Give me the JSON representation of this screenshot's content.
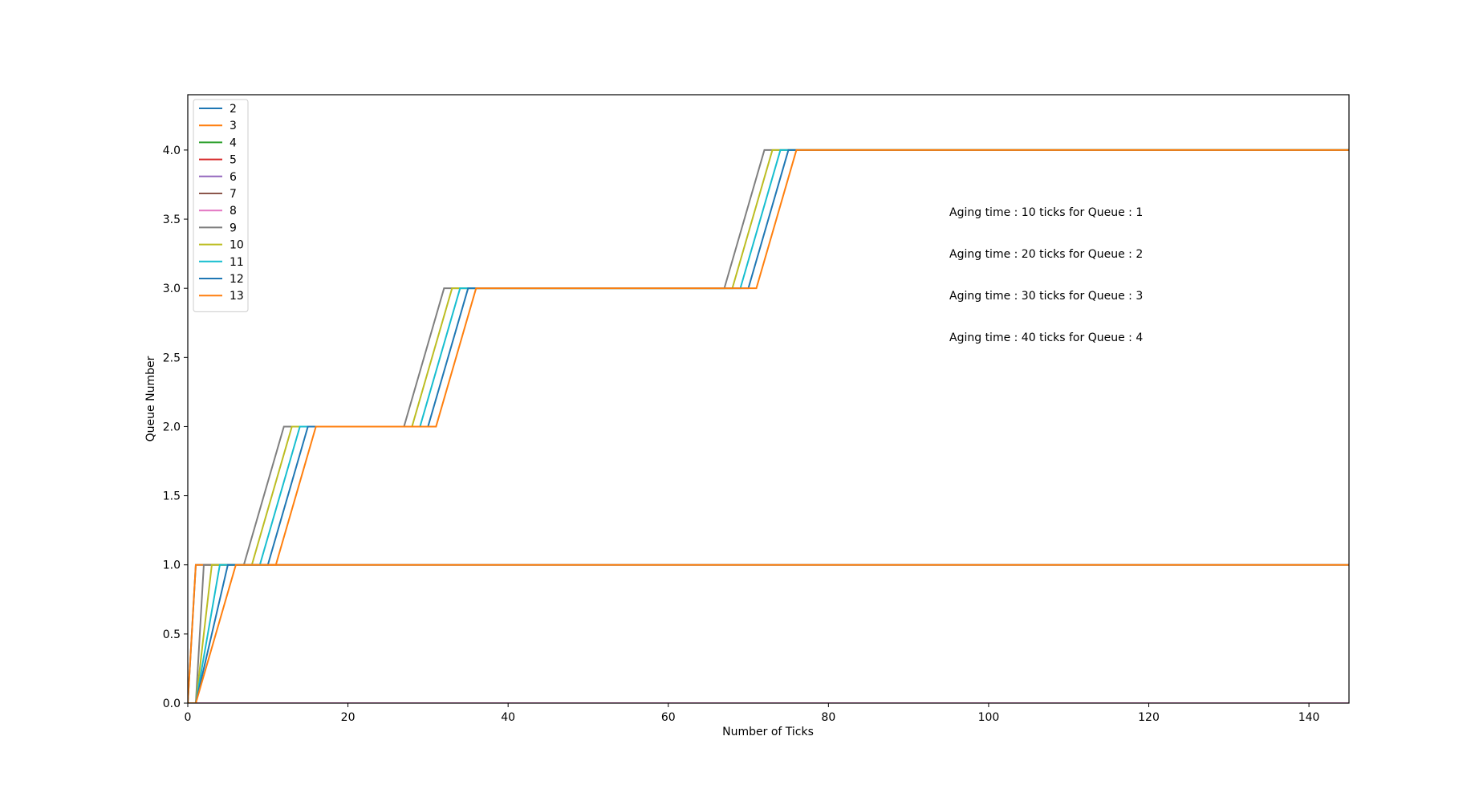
{
  "chart_data": {
    "type": "line",
    "title": "",
    "xlabel": "Number of Ticks",
    "ylabel": "Queue Number",
    "xlim": [
      0,
      145
    ],
    "ylim": [
      0,
      4.4
    ],
    "xticks": [
      0,
      20,
      40,
      60,
      80,
      100,
      120,
      140
    ],
    "xtick_labels": [
      "0",
      "20",
      "40",
      "60",
      "80",
      "100",
      "120",
      "140"
    ],
    "yticks": [
      0,
      0.5,
      1,
      1.5,
      2,
      2.5,
      3,
      3.5,
      4
    ],
    "ytick_labels": [
      "0.0",
      "0.5",
      "1.0",
      "1.5",
      "2.0",
      "2.5",
      "3.0",
      "3.5",
      "4.0"
    ],
    "grid": false,
    "legend_position": "upper-left",
    "annotations": [
      "Aging time : 10 ticks for Queue : 1",
      "Aging time : 20 ticks for Queue : 2",
      "Aging time : 30 ticks for Queue : 3",
      "Aging time : 40 ticks for Queue : 4"
    ],
    "series": [
      {
        "name": "2",
        "color": "#1f77b4",
        "x": [
          0,
          1,
          145
        ],
        "y": [
          0,
          1,
          1
        ]
      },
      {
        "name": "3",
        "color": "#ff7f0e",
        "x": [
          0,
          1,
          145
        ],
        "y": [
          0,
          1,
          1
        ]
      },
      {
        "name": "4",
        "color": "#2ca02c",
        "x": [
          0,
          145
        ],
        "y": [
          0,
          0
        ]
      },
      {
        "name": "5",
        "color": "#d62728",
        "x": [
          0,
          145
        ],
        "y": [
          0,
          0
        ]
      },
      {
        "name": "6",
        "color": "#9467bd",
        "x": [
          0,
          145
        ],
        "y": [
          0,
          0
        ]
      },
      {
        "name": "7",
        "color": "#8c564b",
        "x": [
          0,
          145
        ],
        "y": [
          0,
          0
        ]
      },
      {
        "name": "8",
        "color": "#e377c2",
        "x": [
          0,
          145
        ],
        "y": [
          0,
          0
        ]
      },
      {
        "name": "9",
        "color": "#7f7f7f",
        "x": [
          0,
          1,
          2,
          7,
          12,
          27,
          32,
          67,
          72,
          145
        ],
        "y": [
          0,
          0,
          1,
          1,
          2,
          2,
          3,
          3,
          4,
          4
        ]
      },
      {
        "name": "10",
        "color": "#bcbd22",
        "x": [
          0,
          1,
          3,
          8,
          13,
          28,
          33,
          68,
          73,
          145
        ],
        "y": [
          0,
          0,
          1,
          1,
          2,
          2,
          3,
          3,
          4,
          4
        ]
      },
      {
        "name": "11",
        "color": "#17becf",
        "x": [
          0,
          1,
          4,
          9,
          14,
          29,
          34,
          69,
          74,
          145
        ],
        "y": [
          0,
          0,
          1,
          1,
          2,
          2,
          3,
          3,
          4,
          4
        ]
      },
      {
        "name": "12",
        "color": "#1f77b4",
        "x": [
          0,
          1,
          5,
          10,
          15,
          30,
          35,
          70,
          75,
          145
        ],
        "y": [
          0,
          0,
          1,
          1,
          2,
          2,
          3,
          3,
          4,
          4
        ]
      },
      {
        "name": "13",
        "color": "#ff7f0e",
        "x": [
          0,
          1,
          6,
          11,
          16,
          31,
          36,
          71,
          76,
          145
        ],
        "y": [
          0,
          0,
          1,
          1,
          2,
          2,
          3,
          3,
          4,
          4
        ]
      }
    ]
  }
}
